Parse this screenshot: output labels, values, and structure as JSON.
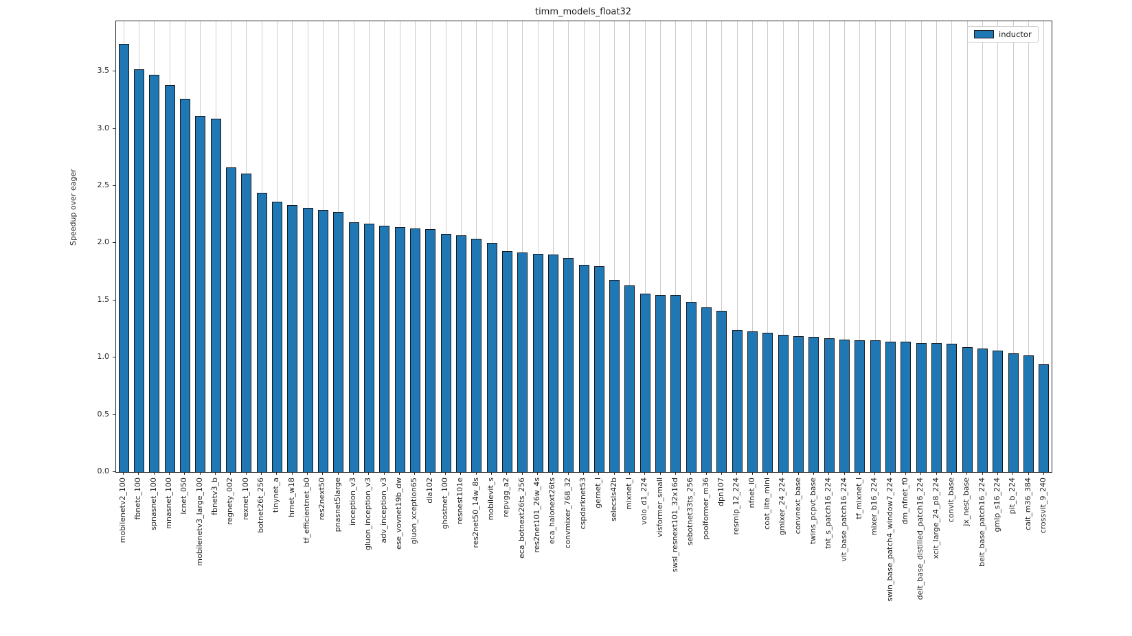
{
  "title": "timm_models_float32",
  "legend": {
    "label": "inductor",
    "swatch_color": "#1f77b4"
  },
  "y_axis": {
    "label": "Speedup over eager",
    "tick_labels": [
      "0.0",
      "0.5",
      "1.0",
      "1.5",
      "2.0",
      "2.5",
      "3.0",
      "3.5"
    ],
    "tick_values": [
      0.0,
      0.5,
      1.0,
      1.5,
      2.0,
      2.5,
      3.0,
      3.5
    ]
  },
  "colors": {
    "bar_fill": "#1f77b4",
    "bar_edge": "#16181d",
    "grid": "#cccccc",
    "spine": "#262626"
  },
  "chart_data": {
    "type": "bar",
    "title": "timm_models_float32",
    "xlabel": "",
    "ylabel": "Speedup over eager",
    "ylim": [
      0,
      3.94
    ],
    "grid": "vertical-x-gridlines",
    "legend_position": "upper right",
    "series_name": "inductor",
    "categories": [
      "mobilenetv2_100",
      "fbnetc_100",
      "spnasnet_100",
      "mnasnet_100",
      "lcnet_050",
      "mobilenetv3_large_100",
      "fbnetv3_b",
      "regnety_002",
      "rexnet_100",
      "botnet26t_256",
      "tinynet_a",
      "hrnet_w18",
      "tf_efficientnet_b0",
      "res2next50",
      "pnasnet5large",
      "inception_v3",
      "gluon_inception_v3",
      "adv_inception_v3",
      "ese_vovnet19b_dw",
      "gluon_xception65",
      "dla102",
      "ghostnet_100",
      "resnest101e",
      "res2net50_14w_8s",
      "mobilevit_s",
      "repvgg_a2",
      "eca_botnext26ts_256",
      "res2net101_26w_4s",
      "eca_halonext26ts",
      "convmixer_768_32",
      "cspdarknet53",
      "gernet_l",
      "selecsls42b",
      "mixnet_l",
      "volo_d1_224",
      "visformer_small",
      "swsl_resnext101_32x16d",
      "sebotnet33ts_256",
      "poolformer_m36",
      "dpn107",
      "resmlp_12_224",
      "nfnet_l0",
      "coat_lite_mini",
      "gmixer_24_224",
      "convnext_base",
      "twins_pcpvt_base",
      "tnt_s_patch16_224",
      "vit_base_patch16_224",
      "tf_mixnet_l",
      "mixer_b16_224",
      "swin_base_patch4_window7_224",
      "dm_nfnet_f0",
      "deit_base_distilled_patch16_224",
      "xcit_large_24_p8_224",
      "convit_base",
      "jx_nest_base",
      "beit_base_patch16_224",
      "gmlp_s16_224",
      "pit_b_224",
      "cait_m36_384",
      "crossvit_9_240"
    ],
    "values": [
      3.74,
      3.52,
      3.47,
      3.38,
      3.26,
      3.11,
      3.09,
      2.66,
      2.61,
      2.44,
      2.36,
      2.33,
      2.31,
      2.29,
      2.27,
      2.18,
      2.17,
      2.15,
      2.14,
      2.13,
      2.12,
      2.08,
      2.07,
      2.04,
      2.0,
      1.93,
      1.92,
      1.91,
      1.9,
      1.87,
      1.81,
      1.8,
      1.68,
      1.63,
      1.56,
      1.55,
      1.55,
      1.49,
      1.44,
      1.41,
      1.24,
      1.23,
      1.22,
      1.2,
      1.19,
      1.18,
      1.17,
      1.16,
      1.15,
      1.15,
      1.14,
      1.14,
      1.13,
      1.13,
      1.12,
      1.09,
      1.08,
      1.06,
      1.04,
      1.02,
      0.94
    ]
  }
}
